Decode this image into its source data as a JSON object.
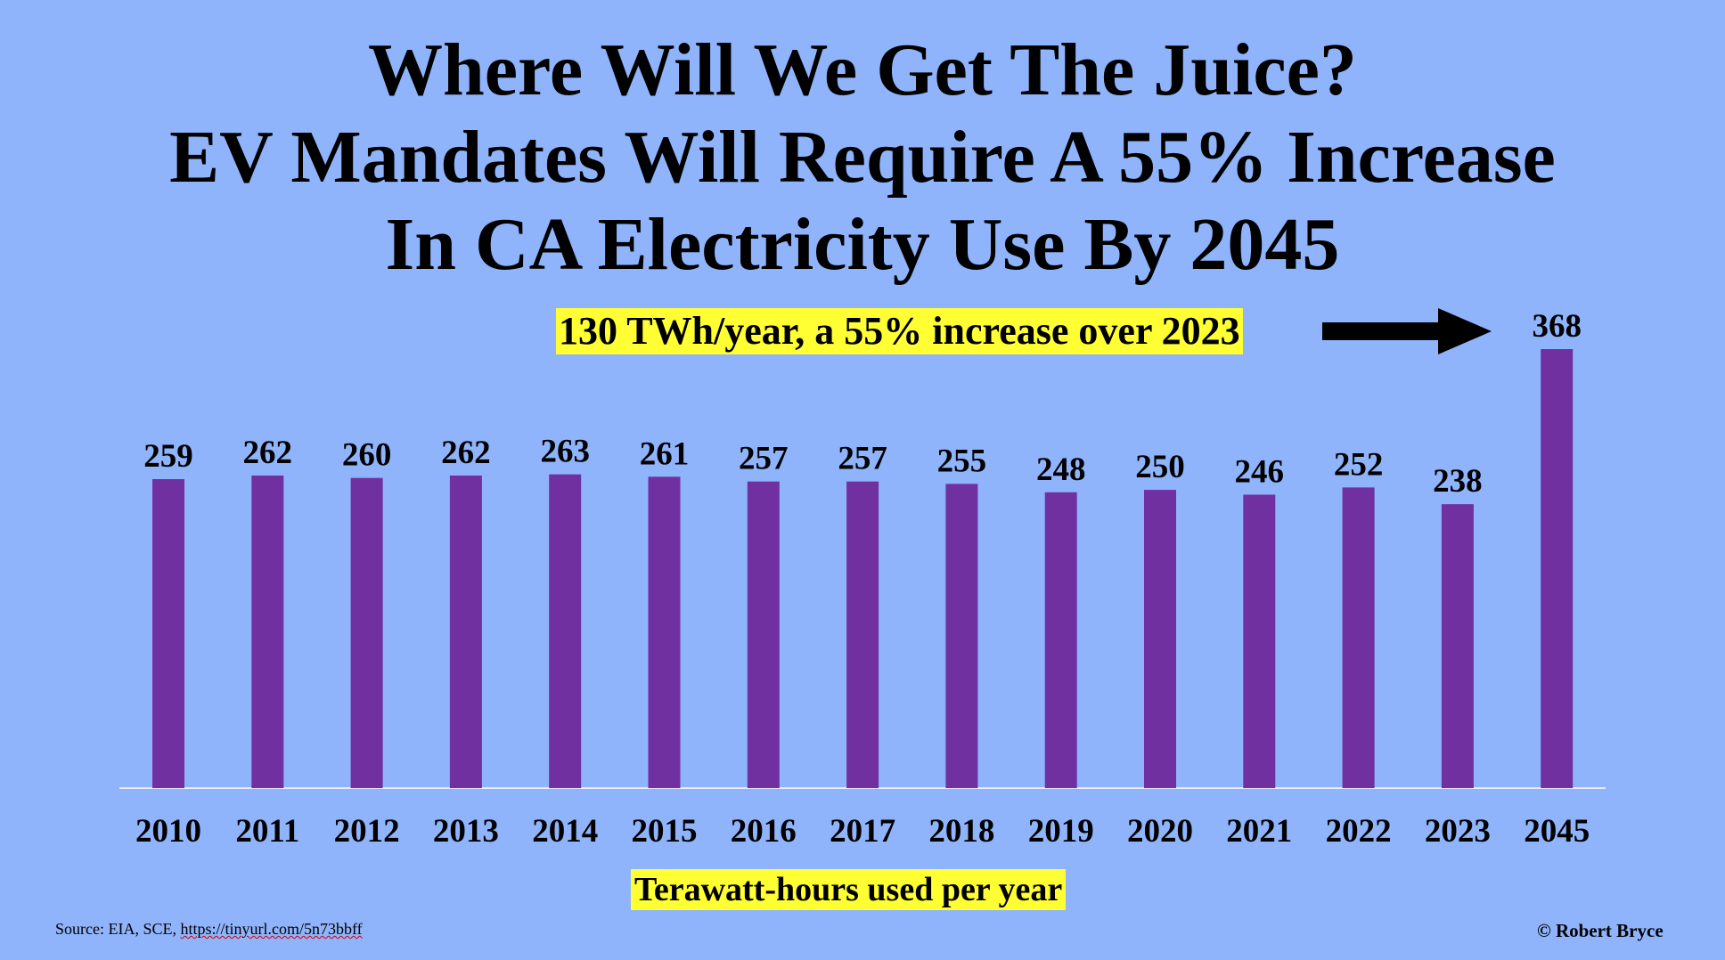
{
  "title_lines": [
    "Where Will We Get The Juice?",
    "EV Mandates Will Require A 55% Increase",
    "In CA Electricity Use By 2045"
  ],
  "callout": "130 TWh/year, a 55% increase over 2023",
  "source": {
    "label": "Source: EIA, SCE,",
    "url": "https://tinyurl.com/5n73bbff"
  },
  "copyright": "© Robert Bryce",
  "colors": {
    "background": "#8fb4fc",
    "bar": "#7030a0",
    "highlight": "#ffff33",
    "baseline": "#e8eefc"
  },
  "chart_data": {
    "type": "bar",
    "title": "Where Will We Get The Juice? EV Mandates Will Require A 55% Increase In CA Electricity Use By 2045",
    "categories": [
      "2010",
      "2011",
      "2012",
      "2013",
      "2014",
      "2015",
      "2016",
      "2017",
      "2018",
      "2019",
      "2020",
      "2021",
      "2022",
      "2023",
      "2045"
    ],
    "values": [
      259,
      262,
      260,
      262,
      263,
      261,
      257,
      257,
      255,
      248,
      250,
      246,
      252,
      238,
      368
    ],
    "xlabel": "Terawatt-hours used per year",
    "ylabel": "",
    "ylim": [
      0,
      368
    ],
    "data_labels": true,
    "grid": false,
    "legend": "none"
  }
}
